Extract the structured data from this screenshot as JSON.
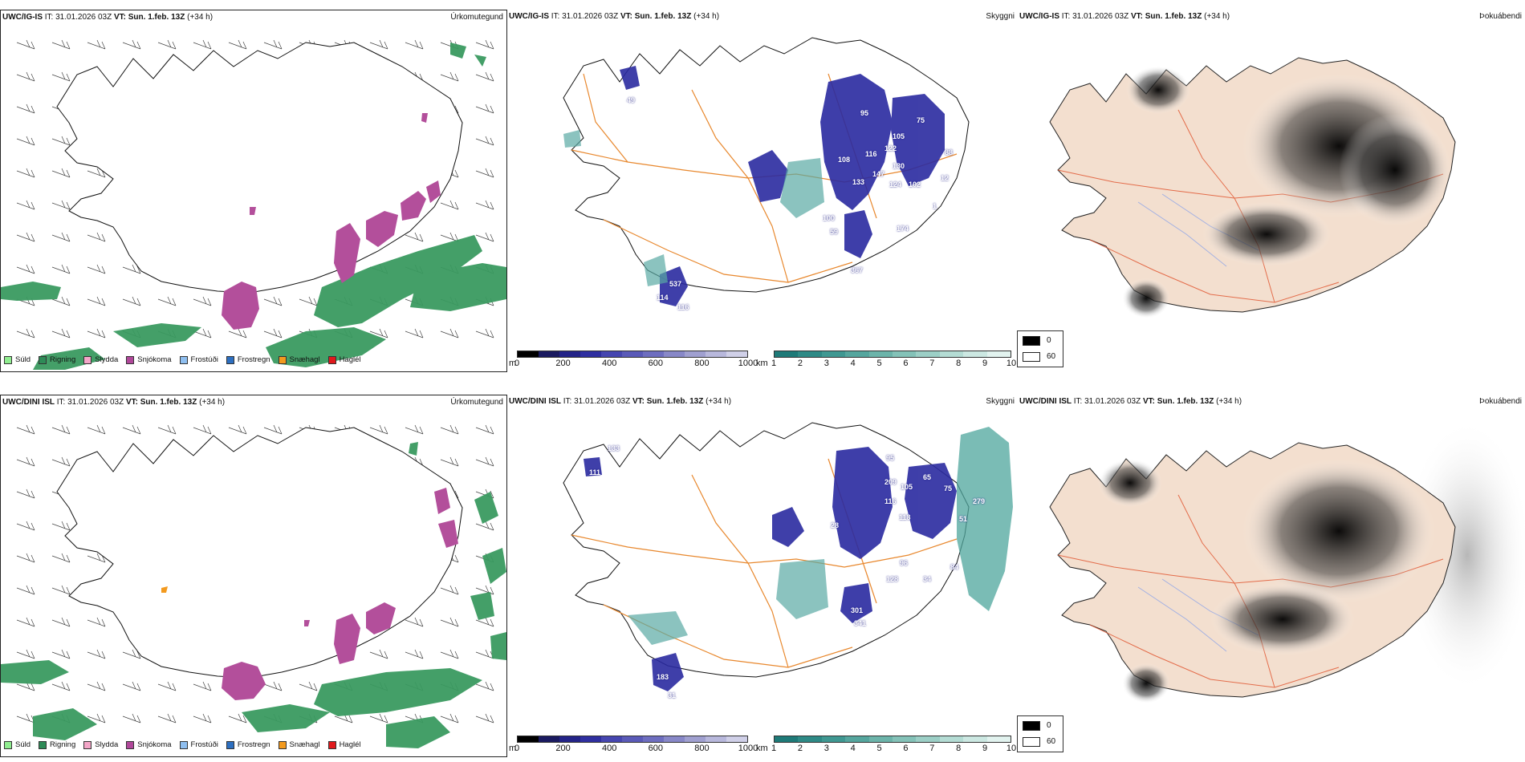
{
  "rows": [
    {
      "model": "UWC/IG-IS",
      "it_label": "IT:",
      "it_value": "31.01.2026 03Z",
      "vt_label": "VT:",
      "vt_value": "Sun. 1.feb. 13Z",
      "lead": "(+34 h)",
      "panel_labels": [
        "Úrkomutegund",
        "Skyggni",
        "Þokuábendi"
      ],
      "visibility_numbers": [
        "95",
        "75",
        "105",
        "122",
        "116",
        "108",
        "88",
        "12",
        "147",
        "130",
        "124",
        "102",
        "133",
        "174",
        "100",
        "59",
        "367",
        "114",
        "537",
        "116",
        "49",
        "1"
      ]
    },
    {
      "model": "UWC/DINI ISL",
      "it_label": "IT:",
      "it_value": "31.01.2026 03Z",
      "vt_label": "VT:",
      "vt_value": "Sun. 1.feb. 13Z",
      "lead": "(+34 h)",
      "panel_labels": [
        "Úrkomutegund",
        "Skyggni",
        "Þokuábendi"
      ],
      "visibility_numbers": [
        "133",
        "111",
        "95",
        "209",
        "65",
        "105",
        "116",
        "75",
        "279",
        "118",
        "51",
        "28",
        "96",
        "128",
        "34",
        "301",
        "341",
        "183",
        "31",
        "84"
      ]
    }
  ],
  "precip_legend": [
    {
      "label": "Súld",
      "color": "#90ee90"
    },
    {
      "label": "Rigning",
      "color": "#2e8b57"
    },
    {
      "label": "Slydda",
      "color": "#f4a6c8"
    },
    {
      "label": "Snjókoma",
      "color": "#b0479a"
    },
    {
      "label": "Frostúði",
      "color": "#8fbff0"
    },
    {
      "label": "Frostregn",
      "color": "#2d6fc0"
    },
    {
      "label": "Snæhagl",
      "color": "#f39a1e"
    },
    {
      "label": "Haglél",
      "color": "#e0191c"
    }
  ],
  "height_scale": {
    "unit": "m",
    "ticks": [
      "0",
      "200",
      "400",
      "600",
      "800",
      "1000"
    ],
    "colors": [
      "#000000",
      "#1a1a60",
      "#232388",
      "#2f2fa0",
      "#4646b0",
      "#5a5ab8",
      "#6e6ec0",
      "#8888c8",
      "#a0a0d0",
      "#b8b8dc",
      "#d0d0e8"
    ]
  },
  "visibility_scale": {
    "unit": "km",
    "ticks": [
      "1",
      "2",
      "3",
      "4",
      "5",
      "6",
      "7",
      "8",
      "9",
      "10"
    ],
    "colors": [
      "#1e7a78",
      "#2e8a86",
      "#3f9892",
      "#55a69e",
      "#6cb4aa",
      "#84c2b8",
      "#9ccfc6",
      "#b4dcd4",
      "#cce8e2",
      "#e2f3ef"
    ]
  },
  "fog_legend": [
    {
      "label": "0",
      "color": "#000000"
    },
    {
      "label": "60",
      "color": "#ffffff"
    }
  ]
}
